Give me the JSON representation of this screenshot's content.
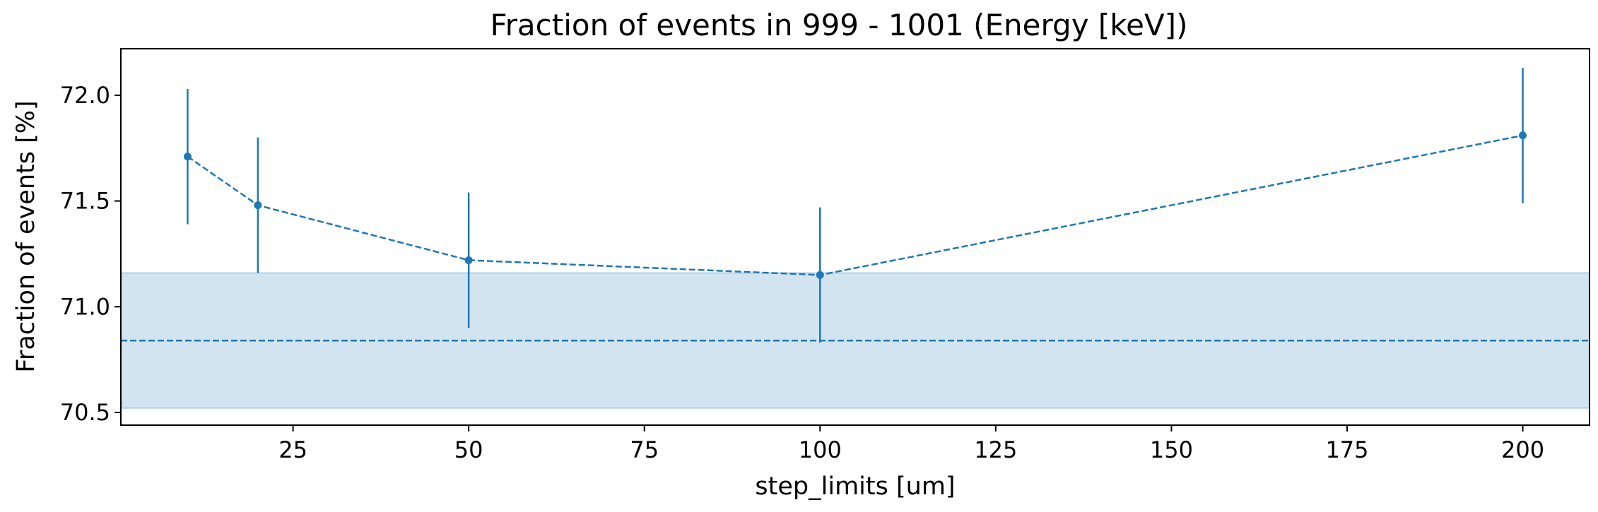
{
  "chart_data": {
    "type": "line",
    "title": "Fraction of events in 999 - 1001 (Energy [keV])",
    "xlabel": "step_limits [um]",
    "ylabel": "Fraction of events [%]",
    "xlim": [
      0.5,
      209.5
    ],
    "ylim": [
      70.44,
      72.22
    ],
    "xticks": [
      25,
      50,
      75,
      100,
      125,
      150,
      175,
      200
    ],
    "yticks": [
      70.5,
      71.0,
      71.5,
      72.0
    ],
    "ytick_labels": [
      "70.5",
      "71.0",
      "71.5",
      "72.0"
    ],
    "grid": false,
    "series": [
      {
        "name": "fraction",
        "x": [
          10,
          20,
          50,
          100,
          200
        ],
        "y": [
          71.71,
          71.48,
          71.22,
          71.15,
          71.81
        ],
        "yerr": [
          0.32,
          0.32,
          0.32,
          0.32,
          0.32
        ],
        "linestyle": "dashed",
        "marker": "circle",
        "color": "#1f77b4"
      }
    ],
    "reference": {
      "value": 70.84,
      "band": [
        70.52,
        71.16
      ],
      "linestyle": "dashed",
      "color": "#1f77b4",
      "band_color": "#1f77b4"
    }
  }
}
